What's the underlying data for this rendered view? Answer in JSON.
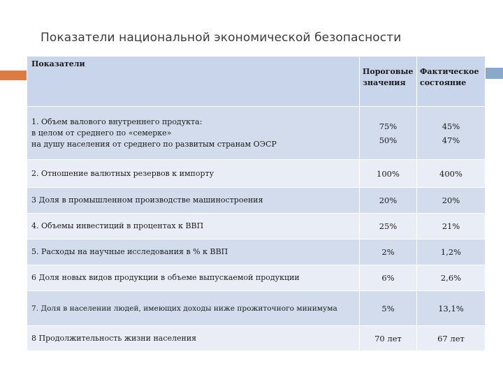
{
  "title": "Показатели национальной экономической безопасности",
  "table": {
    "header": {
      "indicator": "Показатели",
      "threshold": "Пороговые\nзначения",
      "actual": "Фактическое\nсостояние"
    },
    "rows": [
      {
        "label_lines": [
          "1. Объем валового внутреннего продукта:",
          "в целом от среднего по «семерке»",
          "на душу населения от среднего по развитым странам ОЭСР"
        ],
        "threshold": [
          "75%",
          "50%"
        ],
        "actual": [
          "45%",
          "47%"
        ]
      },
      {
        "label": "2. Отношение валютных резервов к импорту",
        "threshold": "100%",
        "actual": "400%"
      },
      {
        "label": "3 Доля в промышленном производстве машиностроения",
        "threshold": "20%",
        "actual": "20%"
      },
      {
        "label": "4. Объемы инвестиций в процентах к ВВП",
        "threshold": "25%",
        "actual": "21%"
      },
      {
        "label": "5. Расходы на научные исследования в % к ВВП",
        "threshold": "2%",
        "actual": "1,2%"
      },
      {
        "label": "6 Доля новых видов продукции в объеме выпускаемой продукции",
        "threshold": "6%",
        "actual": "2,6%"
      },
      {
        "label": "7. Доля в населении людей, имеющих доходы ниже прожиточного минимума",
        "threshold": "5%",
        "actual": "13,1%"
      },
      {
        "label": "8 Продолжительность жизни населения",
        "threshold": "70 лет",
        "actual": "67 лет"
      }
    ]
  },
  "colors": {
    "header_bg": "#c9d5ea",
    "row_dark": "#d3dcec",
    "row_light": "#e8edf6",
    "accent_orange": "#e07a45",
    "accent_blue": "#8aa9c8"
  }
}
